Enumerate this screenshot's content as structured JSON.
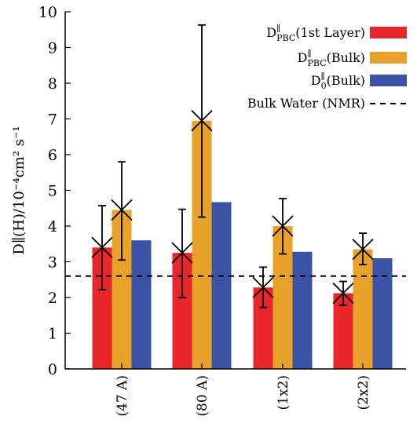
{
  "chart_data": {
    "type": "bar",
    "categories": [
      "(47 A)",
      "(80 A)",
      "(1x2)",
      "(2x2)"
    ],
    "series": [
      {
        "name": "D∥PBC(1st Layer)",
        "main": "D",
        "sup": "∥",
        "sub": "PBC",
        "suffix": "(1st Layer)",
        "color": "#e8262b",
        "values": [
          3.4,
          3.25,
          2.28,
          2.12
        ],
        "err_low": [
          2.22,
          2.0,
          1.72,
          1.78
        ],
        "err_high": [
          4.57,
          4.47,
          2.85,
          2.45
        ]
      },
      {
        "name": "D∥PBC(Bulk)",
        "main": "D",
        "sup": "∥",
        "sub": "PBC",
        "suffix": "(Bulk)",
        "color": "#e8a229",
        "values": [
          4.45,
          6.95,
          4.0,
          3.35
        ],
        "err_low": [
          3.05,
          4.25,
          3.22,
          2.92
        ],
        "err_high": [
          5.8,
          9.63,
          4.77,
          3.8
        ]
      },
      {
        "name": "D∥0(Bulk)",
        "main": "D",
        "sup": "∥",
        "sub": "0",
        "suffix": "(Bulk)",
        "color": "#3a53a4",
        "values": [
          3.6,
          4.67,
          3.28,
          3.1
        ]
      }
    ],
    "reference_line": {
      "name": "Bulk Water (NMR)",
      "value": 2.6,
      "style": "dashed"
    },
    "ylabel": "D∥(H)/10⁻⁴cm² s⁻¹",
    "ylim": [
      0,
      10
    ],
    "yticks": [
      "0",
      "1",
      "2",
      "3",
      "4",
      "5",
      "6",
      "7",
      "8",
      "9",
      "10"
    ],
    "legend_position": "top-right",
    "grid": false
  }
}
